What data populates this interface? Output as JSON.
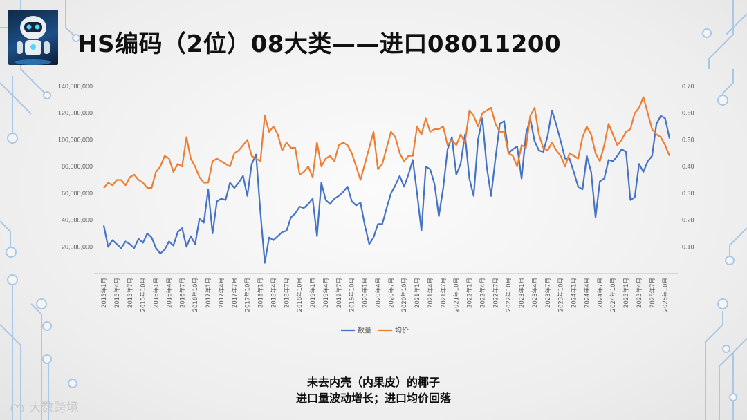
{
  "page": {
    "title": "HS编码（2位）08大类——进口08011200",
    "caption_line1": "未去内壳（内果皮）的椰子",
    "caption_line2": "进口量波动增长；进口均价回落",
    "watermark": "大数跨境",
    "logo_icon": "robot-logo-icon",
    "colors": {
      "quantity": "#4472C4",
      "price": "#ED7D31"
    }
  },
  "chart_data": {
    "type": "line",
    "title": "",
    "xlabel": "",
    "ylabel": "",
    "categories": [
      "2015年1月",
      "2015年2月",
      "2015年3月",
      "2015年4月",
      "2015年5月",
      "2015年6月",
      "2015年7月",
      "2015年8月",
      "2015年9月",
      "2015年10月",
      "2015年11月",
      "2015年12月",
      "2016年1月",
      "2016年2月",
      "2016年3月",
      "2016年4月",
      "2016年5月",
      "2016年6月",
      "2016年7月",
      "2016年8月",
      "2016年9月",
      "2016年10月",
      "2016年11月",
      "2016年12月",
      "2017年1月",
      "2017年2月",
      "2017年3月",
      "2017年4月",
      "2017年5月",
      "2017年6月",
      "2017年7月",
      "2017年8月",
      "2017年9月",
      "2017年10月",
      "2017年11月",
      "2017年12月",
      "2018年1月",
      "2018年2月",
      "2018年3月",
      "2018年4月",
      "2018年5月",
      "2018年6月",
      "2018年7月",
      "2018年8月",
      "2018年9月",
      "2018年10月",
      "2018年11月",
      "2018年12月",
      "2019年1月",
      "2019年2月",
      "2019年3月",
      "2019年4月",
      "2019年5月",
      "2019年6月",
      "2019年7月",
      "2019年8月",
      "2019年9月",
      "2019年10月",
      "2019年11月",
      "2019年12月",
      "2020年1月",
      "2020年2月",
      "2020年3月",
      "2020年4月",
      "2020年5月",
      "2020年6月",
      "2020年7月",
      "2020年8月",
      "2020年9月",
      "2020年10月",
      "2020年11月",
      "2020年12月",
      "2021年1月",
      "2021年2月",
      "2021年3月",
      "2021年4月",
      "2021年5月",
      "2021年6月",
      "2021年7月",
      "2021年8月",
      "2021年9月",
      "2021年10月",
      "2021年11月",
      "2021年12月",
      "2022年1月",
      "2022年2月",
      "2022年3月",
      "2022年4月",
      "2022年5月",
      "2022年6月",
      "2022年7月",
      "2022年8月",
      "2022年9月",
      "2022年10月",
      "2022年11月",
      "2022年12月",
      "2023年1月",
      "2023年2月",
      "2023年3月",
      "2023年4月",
      "2023年5月",
      "2023年6月",
      "2023年7月",
      "2023年8月",
      "2023年9月",
      "2023年10月",
      "2023年11月",
      "2023年12月",
      "2024年1月",
      "2024年2月",
      "2024年3月",
      "2024年4月",
      "2024年5月",
      "2024年6月",
      "2024年7月",
      "2024年8月",
      "2024年9月",
      "2024年10月",
      "2024年11月",
      "2024年12月",
      "2025年1月",
      "2025年2月",
      "2025年3月",
      "2025年4月",
      "2025年5月",
      "2025年6月",
      "2025年7月",
      "2025年8月",
      "2025年9月",
      "2025年10月",
      "2025年11月"
    ],
    "tick_labels_shown_every": 3,
    "y_left": {
      "min": 0,
      "max": 140000000,
      "ticks": [
        "20,000,000",
        "40,000,000",
        "60,000,000",
        "80,000,000",
        "100,000,000",
        "120,000,000",
        "140,000,000"
      ]
    },
    "y_right": {
      "min": 0,
      "max": 0.7,
      "ticks": [
        "0.10",
        "0.20",
        "0.30",
        "0.40",
        "0.50",
        "0.60",
        "0.70"
      ]
    },
    "grid": false,
    "legend_position": "bottom",
    "series": [
      {
        "name": "数量",
        "axis": "left",
        "values": [
          36000000,
          20000000,
          25000000,
          22000000,
          19000000,
          24000000,
          22000000,
          19000000,
          26000000,
          23000000,
          30000000,
          27000000,
          19000000,
          15000000,
          18000000,
          24000000,
          21000000,
          31000000,
          34000000,
          20000000,
          28000000,
          22000000,
          41000000,
          38000000,
          63000000,
          30000000,
          54000000,
          56000000,
          55000000,
          68000000,
          64000000,
          68000000,
          73000000,
          58000000,
          82000000,
          89000000,
          46000000,
          8000000,
          27000000,
          25000000,
          28000000,
          31000000,
          32000000,
          42000000,
          45000000,
          50000000,
          49000000,
          52000000,
          56000000,
          28000000,
          68000000,
          55000000,
          52000000,
          56000000,
          58000000,
          61000000,
          65000000,
          54000000,
          51000000,
          53000000,
          36000000,
          22000000,
          27000000,
          37000000,
          37000000,
          49000000,
          60000000,
          66000000,
          73000000,
          65000000,
          74000000,
          85000000,
          60000000,
          32000000,
          80000000,
          78000000,
          67000000,
          43000000,
          64000000,
          93000000,
          102000000,
          74000000,
          82000000,
          104000000,
          71000000,
          58000000,
          100000000,
          116000000,
          80000000,
          58000000,
          86000000,
          112000000,
          114000000,
          90000000,
          93000000,
          95000000,
          71000000,
          104000000,
          116000000,
          99000000,
          92000000,
          91000000,
          103000000,
          122000000,
          111000000,
          99000000,
          86000000,
          86000000,
          76000000,
          65000000,
          63000000,
          88000000,
          76000000,
          42000000,
          69000000,
          71000000,
          85000000,
          84000000,
          88000000,
          93000000,
          91000000,
          55000000,
          57000000,
          82000000,
          76000000,
          84000000,
          88000000,
          112000000,
          118000000,
          116000000,
          101000000
        ]
      },
      {
        "name": "均价",
        "axis": "right",
        "values": [
          0.32,
          0.34,
          0.33,
          0.35,
          0.35,
          0.33,
          0.36,
          0.37,
          0.35,
          0.34,
          0.32,
          0.32,
          0.38,
          0.4,
          0.44,
          0.43,
          0.38,
          0.41,
          0.4,
          0.51,
          0.43,
          0.4,
          0.36,
          0.34,
          0.34,
          0.42,
          0.43,
          0.42,
          0.41,
          0.4,
          0.45,
          0.46,
          0.48,
          0.5,
          0.44,
          0.43,
          0.42,
          0.59,
          0.53,
          0.55,
          0.52,
          0.46,
          0.49,
          0.47,
          0.47,
          0.37,
          0.38,
          0.4,
          0.36,
          0.49,
          0.4,
          0.43,
          0.44,
          0.42,
          0.48,
          0.49,
          0.48,
          0.45,
          0.4,
          0.35,
          0.41,
          0.47,
          0.53,
          0.39,
          0.41,
          0.47,
          0.53,
          0.51,
          0.45,
          0.42,
          0.44,
          0.44,
          0.55,
          0.52,
          0.58,
          0.53,
          0.54,
          0.54,
          0.55,
          0.48,
          0.5,
          0.48,
          0.52,
          0.49,
          0.61,
          0.59,
          0.55,
          0.6,
          0.61,
          0.62,
          0.56,
          0.53,
          0.53,
          0.45,
          0.44,
          0.4,
          0.48,
          0.47,
          0.59,
          0.62,
          0.52,
          0.47,
          0.46,
          0.49,
          0.46,
          0.44,
          0.4,
          0.45,
          0.44,
          0.43,
          0.51,
          0.55,
          0.52,
          0.45,
          0.42,
          0.48,
          0.56,
          0.52,
          0.48,
          0.5,
          0.53,
          0.54,
          0.6,
          0.62,
          0.66,
          0.6,
          0.54,
          0.52,
          0.51,
          0.48,
          0.44
        ]
      }
    ]
  }
}
